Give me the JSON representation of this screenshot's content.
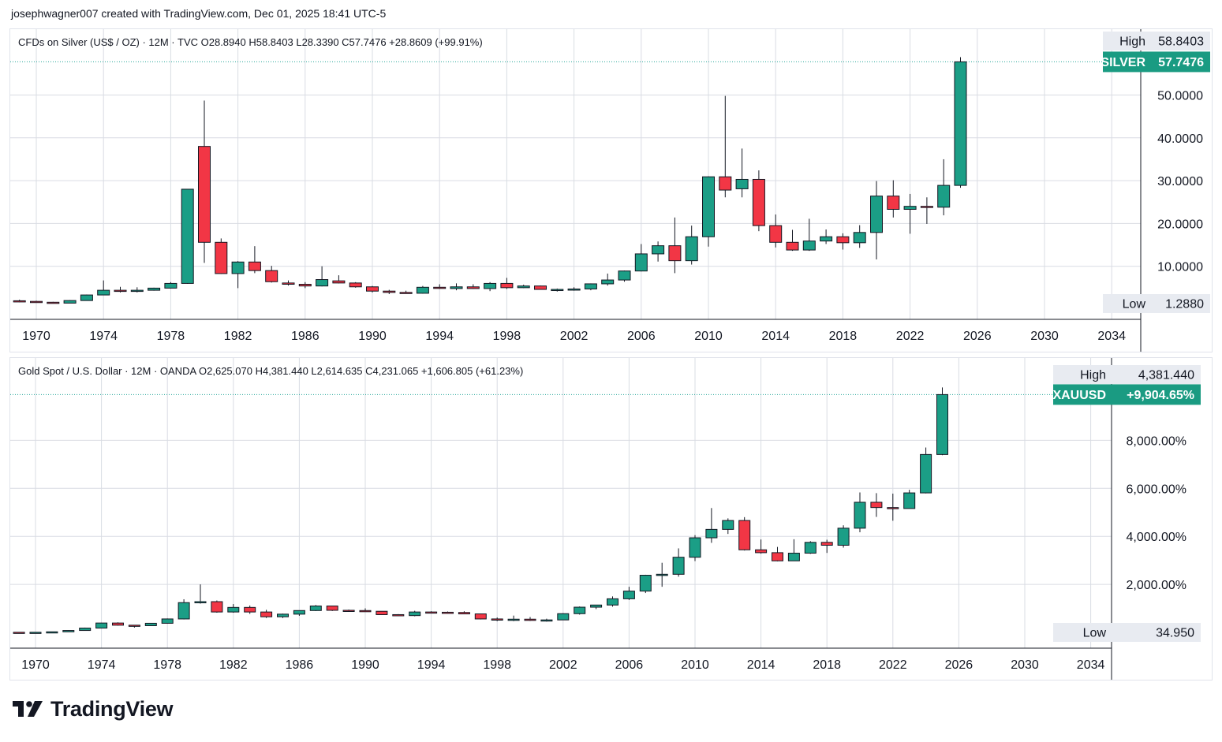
{
  "header": {
    "text": "josephwagner007 created with TradingView.com, Dec 01, 2025 18:41 UTC-5"
  },
  "brand": {
    "name": "TradingView"
  },
  "colors": {
    "up": "#26a69a",
    "up_body": "#1b9e86",
    "down": "#f23645",
    "tag_bg": "#1a9b82",
    "grid": "#d9dce3",
    "wick": "#131722"
  },
  "panels": [
    {
      "id": "silver",
      "legend": "CFDs on Silver (US$ / OZ) · 12M · TVC  O28.8940  H58.8403  L28.3390  C57.7476  +28.8609 (+99.91%)",
      "high_label": "High",
      "high_value": "58.8403",
      "last_label": "SILVER",
      "last_value": "57.7476",
      "low_label": "Low",
      "low_value": "1.2880",
      "y_ticks": [
        "10.0000",
        "20.0000",
        "30.0000",
        "40.0000",
        "50.0000"
      ]
    },
    {
      "id": "gold",
      "legend": "Gold Spot / U.S. Dollar · 12M · OANDA  O2,625.070  H4,381.440  L2,614.635  C4,231.065  +1,606.805 (+61.23%)",
      "high_label": "High",
      "high_value": "4,381.440",
      "last_label": "XAUUSD",
      "last_value": "+9,904.65%",
      "low_label": "Low",
      "low_value": "34.950",
      "y_ticks": [
        "2,000.00%",
        "4,000.00%",
        "6,000.00%",
        "8,000.00%"
      ]
    }
  ],
  "chart_data": [
    {
      "type": "candlestick",
      "title": "CFDs on Silver (US$ / OZ) · 12M · TVC",
      "x_tick_labels": [
        "1970",
        "1974",
        "1978",
        "1982",
        "1986",
        "1990",
        "1994",
        "1998",
        "2002",
        "2006",
        "2010",
        "2014",
        "2018",
        "2022",
        "2026",
        "2030",
        "2034"
      ],
      "x_range": [
        1968.5,
        2036.0
      ],
      "ylim": [
        -3,
        65.5
      ],
      "scale": "linear",
      "candles": [
        {
          "year": 1968,
          "o": 2.2,
          "h": 2.5,
          "l": 2.0,
          "c": 2.0
        },
        {
          "year": 1969,
          "o": 1.95,
          "h": 2.2,
          "l": 1.6,
          "c": 1.8
        },
        {
          "year": 1970,
          "o": 1.8,
          "h": 1.95,
          "l": 1.55,
          "c": 1.6
        },
        {
          "year": 1971,
          "o": 1.6,
          "h": 1.7,
          "l": 1.3,
          "c": 1.4
        },
        {
          "year": 1972,
          "o": 1.4,
          "h": 2.1,
          "l": 1.4,
          "c": 2.0
        },
        {
          "year": 1973,
          "o": 2.0,
          "h": 3.4,
          "l": 2.0,
          "c": 3.3
        },
        {
          "year": 1974,
          "o": 3.3,
          "h": 6.7,
          "l": 3.3,
          "c": 4.4
        },
        {
          "year": 1975,
          "o": 4.4,
          "h": 5.2,
          "l": 3.9,
          "c": 4.3
        },
        {
          "year": 1976,
          "o": 4.3,
          "h": 5.1,
          "l": 3.9,
          "c": 4.4
        },
        {
          "year": 1977,
          "o": 4.4,
          "h": 5.0,
          "l": 4.3,
          "c": 4.9
        },
        {
          "year": 1978,
          "o": 4.9,
          "h": 6.3,
          "l": 4.8,
          "c": 6.0
        },
        {
          "year": 1979,
          "o": 6.0,
          "h": 28.0,
          "l": 5.9,
          "c": 28.0
        },
        {
          "year": 1980,
          "o": 38.0,
          "h": 48.7,
          "l": 10.8,
          "c": 15.6
        },
        {
          "year": 1981,
          "o": 15.6,
          "h": 16.5,
          "l": 8.2,
          "c": 8.3
        },
        {
          "year": 1982,
          "o": 8.3,
          "h": 11.2,
          "l": 4.9,
          "c": 11.0
        },
        {
          "year": 1983,
          "o": 11.0,
          "h": 14.7,
          "l": 8.4,
          "c": 9.0
        },
        {
          "year": 1984,
          "o": 9.0,
          "h": 10.1,
          "l": 6.2,
          "c": 6.4
        },
        {
          "year": 1985,
          "o": 6.1,
          "h": 6.7,
          "l": 5.5,
          "c": 5.8
        },
        {
          "year": 1986,
          "o": 5.8,
          "h": 6.3,
          "l": 4.9,
          "c": 5.4
        },
        {
          "year": 1987,
          "o": 5.4,
          "h": 10.0,
          "l": 5.3,
          "c": 6.9
        },
        {
          "year": 1988,
          "o": 6.6,
          "h": 7.9,
          "l": 6.0,
          "c": 6.1
        },
        {
          "year": 1989,
          "o": 6.1,
          "h": 6.3,
          "l": 5.0,
          "c": 5.2
        },
        {
          "year": 1990,
          "o": 5.2,
          "h": 5.4,
          "l": 3.9,
          "c": 4.2
        },
        {
          "year": 1991,
          "o": 4.2,
          "h": 4.5,
          "l": 3.5,
          "c": 3.9
        },
        {
          "year": 1992,
          "o": 3.9,
          "h": 4.3,
          "l": 3.6,
          "c": 3.7
        },
        {
          "year": 1993,
          "o": 3.7,
          "h": 5.4,
          "l": 3.6,
          "c": 5.1
        },
        {
          "year": 1994,
          "o": 5.1,
          "h": 5.8,
          "l": 4.7,
          "c": 4.9
        },
        {
          "year": 1995,
          "o": 4.8,
          "h": 6.0,
          "l": 4.4,
          "c": 5.2
        },
        {
          "year": 1996,
          "o": 5.2,
          "h": 5.8,
          "l": 4.7,
          "c": 4.8
        },
        {
          "year": 1997,
          "o": 4.8,
          "h": 6.3,
          "l": 4.2,
          "c": 6.0
        },
        {
          "year": 1998,
          "o": 6.0,
          "h": 7.3,
          "l": 4.7,
          "c": 5.0
        },
        {
          "year": 1999,
          "o": 5.0,
          "h": 5.7,
          "l": 4.9,
          "c": 5.4
        },
        {
          "year": 2000,
          "o": 5.4,
          "h": 5.5,
          "l": 4.6,
          "c": 4.6
        },
        {
          "year": 2001,
          "o": 4.6,
          "h": 4.8,
          "l": 4.1,
          "c": 4.6
        },
        {
          "year": 2002,
          "o": 4.6,
          "h": 5.1,
          "l": 4.3,
          "c": 4.7
        },
        {
          "year": 2003,
          "o": 4.7,
          "h": 6.0,
          "l": 4.4,
          "c": 5.9
        },
        {
          "year": 2004,
          "o": 5.9,
          "h": 8.3,
          "l": 5.5,
          "c": 6.8
        },
        {
          "year": 2005,
          "o": 6.8,
          "h": 9.0,
          "l": 6.4,
          "c": 8.9
        },
        {
          "year": 2006,
          "o": 8.9,
          "h": 15.2,
          "l": 8.8,
          "c": 12.9
        },
        {
          "year": 2007,
          "o": 12.9,
          "h": 15.8,
          "l": 11.1,
          "c": 14.8
        },
        {
          "year": 2008,
          "o": 14.8,
          "h": 21.4,
          "l": 8.4,
          "c": 11.3
        },
        {
          "year": 2009,
          "o": 11.3,
          "h": 19.5,
          "l": 10.4,
          "c": 16.9
        },
        {
          "year": 2010,
          "o": 16.9,
          "h": 31.0,
          "l": 14.6,
          "c": 30.9
        },
        {
          "year": 2011,
          "o": 30.9,
          "h": 49.8,
          "l": 26.1,
          "c": 27.8
        },
        {
          "year": 2012,
          "o": 28.1,
          "h": 37.5,
          "l": 26.1,
          "c": 30.3
        },
        {
          "year": 2013,
          "o": 30.3,
          "h": 32.4,
          "l": 18.2,
          "c": 19.5
        },
        {
          "year": 2014,
          "o": 19.5,
          "h": 22.1,
          "l": 14.4,
          "c": 15.6
        },
        {
          "year": 2015,
          "o": 15.6,
          "h": 18.5,
          "l": 13.6,
          "c": 13.8
        },
        {
          "year": 2016,
          "o": 13.8,
          "h": 21.1,
          "l": 13.6,
          "c": 15.9
        },
        {
          "year": 2017,
          "o": 15.9,
          "h": 18.6,
          "l": 15.2,
          "c": 16.9
        },
        {
          "year": 2018,
          "o": 16.9,
          "h": 17.7,
          "l": 13.9,
          "c": 15.5
        },
        {
          "year": 2019,
          "o": 15.5,
          "h": 19.6,
          "l": 14.3,
          "c": 17.9
        },
        {
          "year": 2020,
          "o": 17.9,
          "h": 29.9,
          "l": 11.6,
          "c": 26.4
        },
        {
          "year": 2021,
          "o": 26.4,
          "h": 30.1,
          "l": 21.4,
          "c": 23.3
        },
        {
          "year": 2022,
          "o": 23.3,
          "h": 26.9,
          "l": 17.6,
          "c": 24.0
        },
        {
          "year": 2023,
          "o": 24.0,
          "h": 26.1,
          "l": 19.9,
          "c": 23.8
        },
        {
          "year": 2024,
          "o": 23.8,
          "h": 35.0,
          "l": 21.9,
          "c": 28.9
        },
        {
          "year": 2025,
          "o": 28.894,
          "h": 58.8403,
          "l": 28.339,
          "c": 57.7476
        }
      ]
    },
    {
      "type": "candlestick",
      "title": "Gold Spot / U.S. Dollar · 12M · OANDA",
      "x_tick_labels": [
        "1970",
        "1974",
        "1978",
        "1982",
        "1986",
        "1990",
        "1994",
        "1998",
        "2002",
        "2006",
        "2010",
        "2014",
        "2018",
        "2022",
        "2026",
        "2030",
        "2034"
      ],
      "x_range": [
        1968.5,
        2036.0
      ],
      "ylim": [
        -500,
        11500
      ],
      "scale": "percent",
      "candles": [
        {
          "year": 1968,
          "o": 0,
          "h": 20,
          "l": -10,
          "c": 5
        },
        {
          "year": 1969,
          "o": 5,
          "h": 15,
          "l": -5,
          "c": 0
        },
        {
          "year": 1970,
          "o": 0,
          "h": 10,
          "l": -5,
          "c": 5
        },
        {
          "year": 1971,
          "o": 5,
          "h": 30,
          "l": 0,
          "c": 25
        },
        {
          "year": 1972,
          "o": 25,
          "h": 90,
          "l": 25,
          "c": 80
        },
        {
          "year": 1973,
          "o": 80,
          "h": 200,
          "l": 75,
          "c": 180
        },
        {
          "year": 1974,
          "o": 180,
          "h": 400,
          "l": 170,
          "c": 390
        },
        {
          "year": 1975,
          "o": 390,
          "h": 420,
          "l": 280,
          "c": 300
        },
        {
          "year": 1976,
          "o": 300,
          "h": 300,
          "l": 200,
          "c": 280
        },
        {
          "year": 1977,
          "o": 280,
          "h": 390,
          "l": 270,
          "c": 380
        },
        {
          "year": 1978,
          "o": 380,
          "h": 580,
          "l": 370,
          "c": 560
        },
        {
          "year": 1979,
          "o": 560,
          "h": 1380,
          "l": 540,
          "c": 1240
        },
        {
          "year": 1980,
          "o": 1240,
          "h": 2000,
          "l": 1200,
          "c": 1280
        },
        {
          "year": 1981,
          "o": 1280,
          "h": 1330,
          "l": 820,
          "c": 850
        },
        {
          "year": 1982,
          "o": 850,
          "h": 1180,
          "l": 820,
          "c": 1040
        },
        {
          "year": 1983,
          "o": 1040,
          "h": 1120,
          "l": 770,
          "c": 850
        },
        {
          "year": 1984,
          "o": 850,
          "h": 940,
          "l": 600,
          "c": 650
        },
        {
          "year": 1985,
          "o": 650,
          "h": 780,
          "l": 600,
          "c": 760
        },
        {
          "year": 1986,
          "o": 760,
          "h": 920,
          "l": 690,
          "c": 910
        },
        {
          "year": 1987,
          "o": 910,
          "h": 1140,
          "l": 890,
          "c": 1100
        },
        {
          "year": 1988,
          "o": 1100,
          "h": 1110,
          "l": 890,
          "c": 920
        },
        {
          "year": 1989,
          "o": 920,
          "h": 950,
          "l": 860,
          "c": 910
        },
        {
          "year": 1990,
          "o": 910,
          "h": 1000,
          "l": 860,
          "c": 880
        },
        {
          "year": 1991,
          "o": 880,
          "h": 880,
          "l": 730,
          "c": 740
        },
        {
          "year": 1992,
          "o": 740,
          "h": 760,
          "l": 680,
          "c": 700
        },
        {
          "year": 1993,
          "o": 700,
          "h": 900,
          "l": 670,
          "c": 850
        },
        {
          "year": 1994,
          "o": 850,
          "h": 880,
          "l": 790,
          "c": 840
        },
        {
          "year": 1995,
          "o": 840,
          "h": 870,
          "l": 800,
          "c": 830
        },
        {
          "year": 1996,
          "o": 830,
          "h": 880,
          "l": 760,
          "c": 770
        },
        {
          "year": 1997,
          "o": 770,
          "h": 780,
          "l": 540,
          "c": 560
        },
        {
          "year": 1998,
          "o": 560,
          "h": 620,
          "l": 470,
          "c": 540
        },
        {
          "year": 1999,
          "o": 540,
          "h": 700,
          "l": 470,
          "c": 550
        },
        {
          "year": 2000,
          "o": 550,
          "h": 640,
          "l": 480,
          "c": 500
        },
        {
          "year": 2001,
          "o": 500,
          "h": 570,
          "l": 450,
          "c": 520
        },
        {
          "year": 2002,
          "o": 520,
          "h": 800,
          "l": 510,
          "c": 780
        },
        {
          "year": 2003,
          "o": 780,
          "h": 1080,
          "l": 740,
          "c": 1050
        },
        {
          "year": 2004,
          "o": 1050,
          "h": 1140,
          "l": 970,
          "c": 1140
        },
        {
          "year": 2005,
          "o": 1140,
          "h": 1500,
          "l": 1070,
          "c": 1400
        },
        {
          "year": 2006,
          "o": 1400,
          "h": 1900,
          "l": 1350,
          "c": 1720
        },
        {
          "year": 2007,
          "o": 1720,
          "h": 2400,
          "l": 1640,
          "c": 2380
        },
        {
          "year": 2008,
          "o": 2380,
          "h": 2900,
          "l": 1900,
          "c": 2420
        },
        {
          "year": 2009,
          "o": 2420,
          "h": 3500,
          "l": 2320,
          "c": 3130
        },
        {
          "year": 2010,
          "o": 3130,
          "h": 4050,
          "l": 2970,
          "c": 3940
        },
        {
          "year": 2011,
          "o": 3940,
          "h": 5180,
          "l": 3730,
          "c": 4290
        },
        {
          "year": 2012,
          "o": 4290,
          "h": 4750,
          "l": 4100,
          "c": 4660
        },
        {
          "year": 2013,
          "o": 4660,
          "h": 4800,
          "l": 3410,
          "c": 3440
        },
        {
          "year": 2014,
          "o": 3440,
          "h": 3870,
          "l": 3280,
          "c": 3320
        },
        {
          "year": 2015,
          "o": 3320,
          "h": 3560,
          "l": 2960,
          "c": 2980
        },
        {
          "year": 2016,
          "o": 2980,
          "h": 3880,
          "l": 2980,
          "c": 3300
        },
        {
          "year": 2017,
          "o": 3300,
          "h": 3800,
          "l": 3270,
          "c": 3750
        },
        {
          "year": 2018,
          "o": 3750,
          "h": 3860,
          "l": 3310,
          "c": 3630
        },
        {
          "year": 2019,
          "o": 3630,
          "h": 4460,
          "l": 3530,
          "c": 4340
        },
        {
          "year": 2020,
          "o": 4340,
          "h": 5830,
          "l": 4170,
          "c": 5420
        },
        {
          "year": 2021,
          "o": 5420,
          "h": 5800,
          "l": 4810,
          "c": 5200
        },
        {
          "year": 2022,
          "o": 5200,
          "h": 5780,
          "l": 4650,
          "c": 5160
        },
        {
          "year": 2023,
          "o": 5160,
          "h": 5940,
          "l": 5160,
          "c": 5810
        },
        {
          "year": 2024,
          "o": 5810,
          "h": 7700,
          "l": 5790,
          "c": 7410
        },
        {
          "year": 2025,
          "o": 7410,
          "h": 10200,
          "l": 7380,
          "c": 9904.65
        }
      ]
    }
  ]
}
